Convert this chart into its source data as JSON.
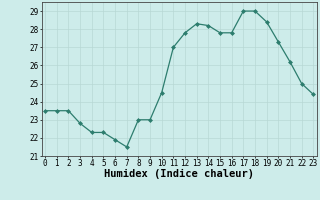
{
  "x": [
    0,
    1,
    2,
    3,
    4,
    5,
    6,
    7,
    8,
    9,
    10,
    11,
    12,
    13,
    14,
    15,
    16,
    17,
    18,
    19,
    20,
    21,
    22,
    23
  ],
  "y": [
    23.5,
    23.5,
    23.5,
    22.8,
    22.3,
    22.3,
    21.9,
    21.5,
    23.0,
    23.0,
    24.5,
    27.0,
    27.8,
    28.3,
    28.2,
    27.8,
    27.8,
    29.0,
    29.0,
    28.4,
    27.3,
    26.2,
    25.0,
    24.4
  ],
  "xlabel": "Humidex (Indice chaleur)",
  "ylim": [
    21,
    29.5
  ],
  "yticks": [
    21,
    22,
    23,
    24,
    25,
    26,
    27,
    28,
    29
  ],
  "xticks": [
    0,
    1,
    2,
    3,
    4,
    5,
    6,
    7,
    8,
    9,
    10,
    11,
    12,
    13,
    14,
    15,
    16,
    17,
    18,
    19,
    20,
    21,
    22,
    23
  ],
  "line_color": "#2d7d6e",
  "marker_color": "#2d7d6e",
  "bg_color": "#cdecea",
  "grid_color": "#b8d8d5",
  "tick_label_fontsize": 5.5,
  "xlabel_fontsize": 7.5,
  "xlim_left": -0.3,
  "xlim_right": 23.3
}
